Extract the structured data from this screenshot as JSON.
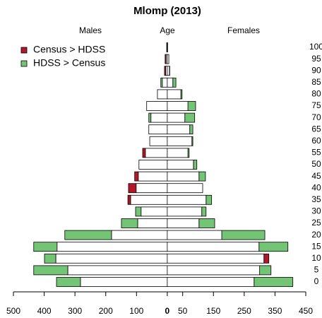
{
  "chart_data": {
    "type": "pyramid",
    "title": "Mlomp (2013)",
    "left_label": "Males",
    "center_label": "Age",
    "right_label": "Females",
    "categories": [
      "0",
      "5",
      "10",
      "15",
      "20",
      "25",
      "30",
      "35",
      "40",
      "45",
      "50",
      "55",
      "60",
      "65",
      "70",
      "75",
      "80",
      "85",
      "90",
      "95",
      "100"
    ],
    "legend": [
      {
        "name": "Census > HDSS",
        "color": "#b2182b"
      },
      {
        "name": "HDSS > Census",
        "color": "#74c476"
      }
    ],
    "males": {
      "census": [
        282,
        323,
        362,
        358,
        181,
        96,
        85,
        128,
        126,
        106,
        92,
        80,
        57,
        60,
        53,
        67,
        32,
        16,
        9,
        7,
        2
      ],
      "hdss": [
        360,
        434,
        399,
        434,
        333,
        149,
        103,
        119,
        101,
        94,
        92,
        71,
        57,
        60,
        60,
        67,
        32,
        21,
        5,
        4,
        2
      ]
    },
    "females": {
      "census": [
        282,
        300,
        330,
        298,
        177,
        103,
        112,
        126,
        115,
        103,
        85,
        67,
        80,
        73,
        57,
        67,
        44,
        18,
        7,
        5,
        1
      ],
      "hdss": [
        408,
        337,
        314,
        392,
        317,
        154,
        126,
        144,
        115,
        124,
        96,
        71,
        83,
        83,
        89,
        92,
        48,
        28,
        8,
        5,
        1
      ]
    },
    "xlim": [
      -500,
      450
    ],
    "xticks": [
      {
        "value": -500,
        "label": "500"
      },
      {
        "value": -400,
        "label": "400"
      },
      {
        "value": -300,
        "label": "300"
      },
      {
        "value": -200,
        "label": "200"
      },
      {
        "value": -100,
        "label": "100"
      },
      0,
      50,
      150,
      250,
      350,
      450
    ]
  }
}
